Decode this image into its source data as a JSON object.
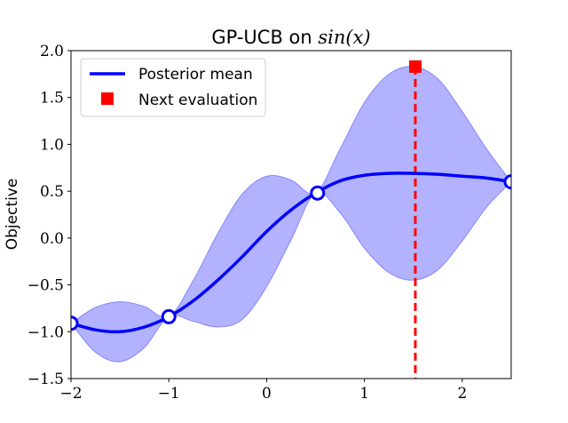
{
  "chart_data": {
    "type": "line",
    "title": "GP-UCB on ",
    "title_math": "sin(x)",
    "xlabel": "",
    "ylabel": "Objective",
    "xlim": [
      -2,
      2.5
    ],
    "ylim": [
      -1.5,
      2.0
    ],
    "xticks": [
      -2,
      -1,
      0,
      1,
      2
    ],
    "xtick_labels": [
      "−2",
      "−1",
      "0",
      "1",
      "2"
    ],
    "yticks": [
      -1.5,
      -1.0,
      -0.5,
      0.0,
      0.5,
      1.0,
      1.5,
      2.0
    ],
    "ytick_labels": [
      "−1.5",
      "−1.0",
      "−0.5",
      "0.0",
      "0.5",
      "1.0",
      "1.5",
      "2.0"
    ],
    "grid": false,
    "legend_position": "top-left",
    "legend": [
      {
        "label": "Posterior mean",
        "marker": "line",
        "color": "#0000ff"
      },
      {
        "label": "Next evaluation",
        "marker": "square",
        "color": "#ff0000"
      }
    ],
    "series": [
      {
        "name": "Posterior mean",
        "color": "#0000ff",
        "x": [
          -2.0,
          -1.75,
          -1.5,
          -1.25,
          -1.0,
          -0.75,
          -0.5,
          -0.25,
          0.0,
          0.25,
          0.5,
          0.75,
          1.0,
          1.25,
          1.5,
          1.75,
          2.0,
          2.25,
          2.5
        ],
        "y": [
          -0.91,
          -0.98,
          -1.0,
          -0.95,
          -0.84,
          -0.67,
          -0.45,
          -0.2,
          0.07,
          0.3,
          0.48,
          0.61,
          0.67,
          0.69,
          0.69,
          0.68,
          0.66,
          0.64,
          0.6
        ]
      }
    ],
    "confidence_band": {
      "color": "#0000ff",
      "x": [
        -2.0,
        -1.75,
        -1.5,
        -1.25,
        -1.0,
        -0.75,
        -0.5,
        -0.25,
        0.0,
        0.25,
        0.5,
        0.75,
        1.0,
        1.25,
        1.5,
        1.75,
        2.0,
        2.25,
        2.5
      ],
      "upper": [
        -0.91,
        -0.74,
        -0.68,
        -0.73,
        -0.84,
        -0.45,
        0.05,
        0.47,
        0.66,
        0.62,
        0.48,
        0.95,
        1.45,
        1.75,
        1.83,
        1.7,
        1.35,
        0.95,
        0.6
      ],
      "lower": [
        -0.91,
        -1.22,
        -1.32,
        -1.17,
        -0.84,
        -0.89,
        -0.95,
        -0.87,
        -0.52,
        -0.02,
        0.48,
        0.27,
        -0.11,
        -0.37,
        -0.45,
        -0.34,
        -0.03,
        0.33,
        0.6
      ]
    },
    "observations": {
      "x": [
        -2.0,
        -1.0,
        0.52,
        2.5
      ],
      "y": [
        -0.91,
        -0.84,
        0.48,
        0.6
      ]
    },
    "next_evaluation": {
      "x": 1.52,
      "y": 1.83,
      "color": "#ff0000"
    }
  }
}
